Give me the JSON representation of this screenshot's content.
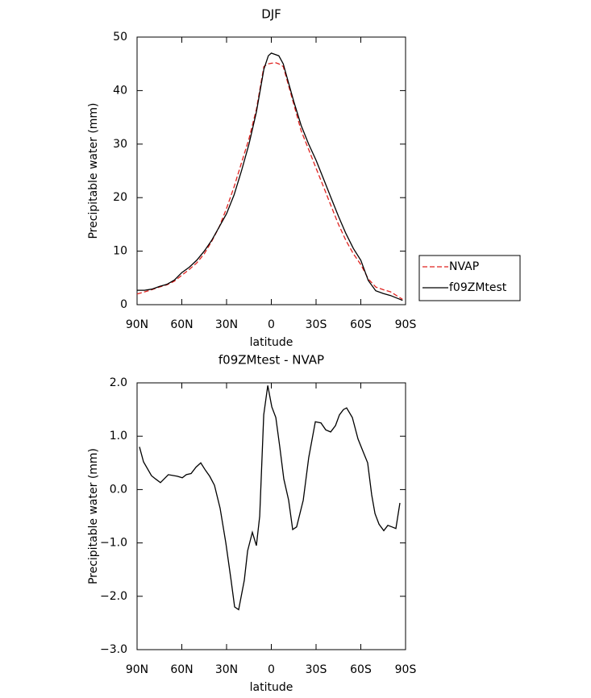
{
  "chart_data": [
    {
      "type": "line",
      "title": "DJF",
      "xlabel": "latitude",
      "ylabel": "Precipitable water (mm)",
      "x": [
        90,
        85,
        80,
        75,
        70,
        65,
        60,
        55,
        50,
        45,
        40,
        35,
        30,
        25,
        20,
        15,
        10,
        5,
        2,
        0,
        -3,
        -5,
        -8,
        -10,
        -15,
        -20,
        -25,
        -30,
        -35,
        -40,
        -45,
        -50,
        -55,
        -60,
        -65,
        -70,
        -75,
        -80,
        -88
      ],
      "series": [
        {
          "name": "NVAP",
          "color": "#e0221f",
          "linestyle": "dashed",
          "values": [
            2.0,
            2.4,
            2.8,
            3.3,
            3.7,
            4.4,
            5.5,
            6.6,
            7.8,
            9.5,
            11.8,
            14.5,
            18,
            22,
            26.5,
            31,
            36.5,
            44.5,
            45,
            45.1,
            45.2,
            45,
            44.5,
            42.5,
            37.5,
            32.5,
            29,
            25.5,
            22,
            18.5,
            15,
            12,
            9.5,
            7.5,
            4.8,
            3.3,
            2.8,
            2.4,
            1.0
          ]
        },
        {
          "name": "f09ZMtest",
          "color": "#000000",
          "linestyle": "solid",
          "values": [
            2.7,
            2.7,
            2.9,
            3.4,
            3.8,
            4.6,
            6.0,
            7.0,
            8.3,
            10.0,
            12.0,
            14.5,
            17.0,
            20.5,
            25.0,
            30.0,
            36.0,
            44.0,
            46.5,
            47.0,
            46.7,
            46.5,
            45,
            43,
            38,
            33.5,
            30,
            27,
            23.5,
            20,
            16.5,
            13.3,
            10.5,
            8.3,
            4.5,
            2.6,
            2.1,
            1.7,
            0.8
          ]
        }
      ],
      "xlim": [
        90,
        -90
      ],
      "xticks": [
        {
          "value": 90,
          "label": "90N"
        },
        {
          "value": 60,
          "label": "60N"
        },
        {
          "value": 30,
          "label": "30N"
        },
        0,
        {
          "value": -30,
          "label": "30S"
        },
        {
          "value": -60,
          "label": "60S"
        },
        {
          "value": -90,
          "label": "90S"
        }
      ],
      "ylim": [
        0,
        50
      ],
      "yticks": [
        0,
        10,
        20,
        30,
        40,
        50
      ],
      "legend": "right"
    },
    {
      "type": "line",
      "title": "f09ZMtest - NVAP",
      "xlabel": "latitude",
      "ylabel": "Precipitable water (mm)",
      "x": [
        88.4,
        85.7,
        80.3,
        77.6,
        74.3,
        69,
        63,
        59.7,
        57,
        53.8,
        50.5,
        47.3,
        44.6,
        41.3,
        38.1,
        34.3,
        30.5,
        27,
        24.6,
        21.9,
        18.1,
        15.9,
        12.7,
        10,
        7.8,
        5.1,
        2.4,
        -0.3,
        -3,
        -5.7,
        -8.4,
        -11.6,
        -14.3,
        -17,
        -21.4,
        -25.1,
        -29.5,
        -33.3,
        -36.5,
        -39.8,
        -43,
        -45.7,
        -48.4,
        -50.5,
        -54.3,
        -58.1,
        -61.4,
        -64.6,
        -67.3,
        -69.5,
        -72.2,
        -75.4,
        -78.1,
        -80.8,
        -83.5,
        -86.2
      ],
      "series": [
        {
          "name": "f09ZMtest - NVAP",
          "color": "#000000",
          "linestyle": "solid",
          "values": [
            0.8,
            0.52,
            0.26,
            0.2,
            0.13,
            0.28,
            0.25,
            0.22,
            0.28,
            0.3,
            0.42,
            0.5,
            0.38,
            0.25,
            0.08,
            -0.35,
            -1.0,
            -1.7,
            -2.2,
            -2.25,
            -1.7,
            -1.15,
            -0.8,
            -1.05,
            -0.5,
            1.4,
            1.95,
            1.55,
            1.35,
            0.8,
            0.2,
            -0.2,
            -0.75,
            -0.7,
            -0.2,
            0.6,
            1.27,
            1.25,
            1.12,
            1.08,
            1.2,
            1.4,
            1.5,
            1.53,
            1.35,
            0.95,
            0.72,
            0.5,
            -0.1,
            -0.45,
            -0.65,
            -0.77,
            -0.67,
            -0.7,
            -0.73,
            -0.25
          ]
        }
      ],
      "xlim": [
        90,
        -90
      ],
      "xticks": [
        {
          "value": 90,
          "label": "90N"
        },
        {
          "value": 60,
          "label": "60N"
        },
        {
          "value": 30,
          "label": "30N"
        },
        0,
        {
          "value": -30,
          "label": "30S"
        },
        {
          "value": -60,
          "label": "60S"
        },
        {
          "value": -90,
          "label": "90S"
        }
      ],
      "ylim": [
        -3,
        2
      ],
      "yticks": [
        {
          "value": -3,
          "label": "−3.0"
        },
        {
          "value": -2,
          "label": "−2.0"
        },
        {
          "value": -1,
          "label": "−1.0"
        },
        {
          "value": 0,
          "label": "0.0"
        },
        {
          "value": 1,
          "label": "1.0"
        },
        {
          "value": 2,
          "label": "2.0"
        }
      ]
    }
  ]
}
